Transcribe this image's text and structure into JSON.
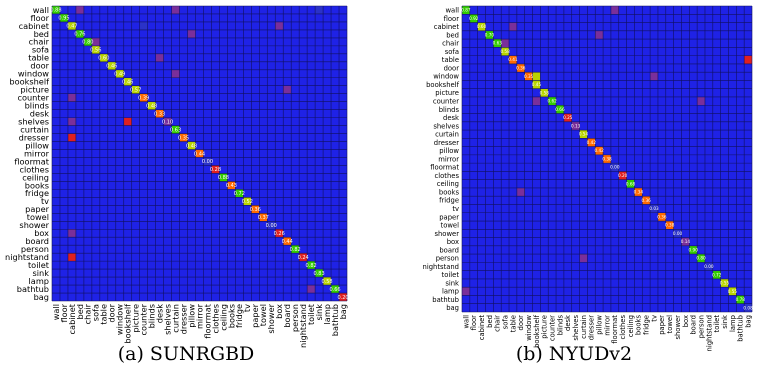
{
  "chart_data": [
    {
      "type": "heatmap",
      "caption": "(a) SUNRGBD",
      "classes": [
        "wall",
        "floor",
        "cabinet",
        "bed",
        "chair",
        "sofa",
        "table",
        "door",
        "window",
        "bookshelf",
        "picture",
        "counter",
        "blinds",
        "desk",
        "shelves",
        "curtain",
        "dresser",
        "pillow",
        "mirror",
        "floormat",
        "clothes",
        "ceiling",
        "books",
        "fridge",
        "tv",
        "paper",
        "towel",
        "shower",
        "box",
        "board",
        "person",
        "nightstand",
        "toilet",
        "sink",
        "lamp",
        "bathtub",
        "bag"
      ],
      "diagonal": [
        0.88,
        0.95,
        0.47,
        0.76,
        0.8,
        0.56,
        0.6,
        0.46,
        0.49,
        0.46,
        0.57,
        0.39,
        0.48,
        0.33,
        0.1,
        0.63,
        0.35,
        0.48,
        0.44,
        0.0,
        0.28,
        0.88,
        0.43,
        0.72,
        0.52,
        0.36,
        0.37,
        0.0,
        0.26,
        0.44,
        0.82,
        0.24,
        0.82,
        0.83,
        0.58,
        0.66,
        0.2
      ],
      "off_diagonal": [
        {
          "row": "wall",
          "col": "bed",
          "value": 0.1
        },
        {
          "row": "wall",
          "col": "curtain",
          "value": 0.1
        },
        {
          "row": "wall",
          "col": "sink",
          "value": 0.08
        },
        {
          "row": "cabinet",
          "col": "counter",
          "value": 0.08
        },
        {
          "row": "cabinet",
          "col": "box",
          "value": 0.1
        },
        {
          "row": "bed",
          "col": "pillow",
          "value": 0.12
        },
        {
          "row": "chair",
          "col": "sofa",
          "value": 0.1
        },
        {
          "row": "table",
          "col": "desk",
          "value": 0.12
        },
        {
          "row": "window",
          "col": "curtain",
          "value": 0.12
        },
        {
          "row": "picture",
          "col": "board",
          "value": 0.1
        },
        {
          "row": "counter",
          "col": "cabinet",
          "value": 0.14
        },
        {
          "row": "shelves",
          "col": "bookshelf",
          "value": 0.2
        },
        {
          "row": "shelves",
          "col": "cabinet",
          "value": 0.12
        },
        {
          "row": "dresser",
          "col": "cabinet",
          "value": 0.18
        },
        {
          "row": "nightstand",
          "col": "cabinet",
          "value": 0.2
        },
        {
          "row": "box",
          "col": "cabinet",
          "value": 0.1
        },
        {
          "row": "bathtub",
          "col": "toilet",
          "value": 0.1
        }
      ]
    },
    {
      "type": "heatmap",
      "caption": "(b) NYUDv2",
      "classes": [
        "wall",
        "floor",
        "cabinet",
        "bed",
        "chair",
        "sofa",
        "table",
        "door",
        "window",
        "bookshelf",
        "picture",
        "counter",
        "blinds",
        "desk",
        "shelves",
        "curtain",
        "dresser",
        "pillow",
        "mirror",
        "floormat",
        "clothes",
        "ceiling",
        "books",
        "fridge",
        "tv",
        "paper",
        "towel",
        "shower",
        "box",
        "board",
        "person",
        "nightstand",
        "toilet",
        "sink",
        "lamp",
        "bathtub",
        "bag"
      ],
      "diagonal": [
        0.87,
        0.92,
        0.6,
        0.7,
        0.63,
        0.58,
        0.41,
        0.36,
        0.35,
        0.45,
        0.58,
        0.62,
        0.66,
        0.25,
        0.13,
        0.54,
        0.42,
        0.42,
        0.38,
        0.0,
        0.2,
        0.68,
        0.34,
        0.36,
        0.03,
        0.36,
        0.38,
        0.0,
        0.14,
        0.9,
        0.8,
        0.0,
        0.72,
        0.55,
        0.55,
        0.78,
        0.08
      ],
      "off_diagonal": [
        {
          "row": "wall",
          "col": "floormat",
          "value": 0.1
        },
        {
          "row": "cabinet",
          "col": "table",
          "value": 0.1
        },
        {
          "row": "bed",
          "col": "pillow",
          "value": 0.1
        },
        {
          "row": "chair",
          "col": "sofa",
          "value": 0.1
        },
        {
          "row": "window",
          "col": "bookshelf",
          "value": 0.45
        },
        {
          "row": "window",
          "col": "tv",
          "value": 0.15
        },
        {
          "row": "counter",
          "col": "bookshelf",
          "value": 0.12
        },
        {
          "row": "counter",
          "col": "person",
          "value": 0.1
        },
        {
          "row": "books",
          "col": "door",
          "value": 0.1
        },
        {
          "row": "person",
          "col": "curtain",
          "value": 0.15
        },
        {
          "row": "table",
          "col": "bag",
          "value": 0.2
        },
        {
          "row": "lamp",
          "col": "wall",
          "value": 0.1
        }
      ]
    }
  ]
}
